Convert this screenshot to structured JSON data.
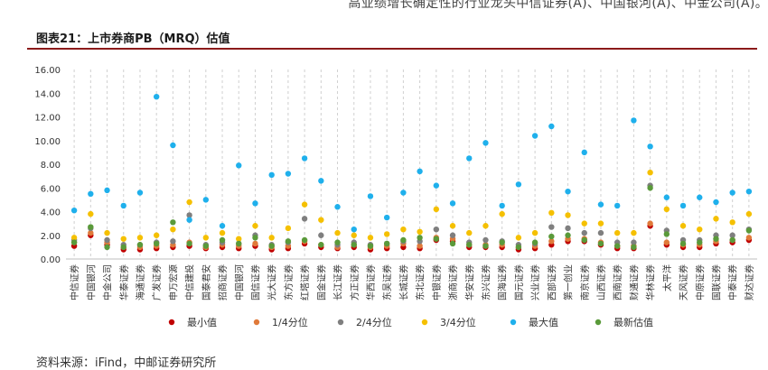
{
  "header": {
    "top_text": "高业绩增长确定性的行业龙头中信证券(A)、中国银河(A)、中金公司(A)。",
    "title": "图表21：上市券商PB（MRQ）估值",
    "source": "资料来源：iFind，中邮证券研究所"
  },
  "chart_data": {
    "type": "scatter",
    "ylim": [
      0,
      16
    ],
    "yticks": [
      "0.00",
      "2.00",
      "4.00",
      "6.00",
      "8.00",
      "10.00",
      "12.00",
      "14.00",
      "16.00"
    ],
    "grid": "vertical-dashed",
    "legend_position": "bottom",
    "categories": [
      "中信证券",
      "中国银河",
      "中金公司",
      "华泰证券",
      "海通证券",
      "广发证券",
      "申万宏源",
      "中信建投",
      "国泰君安",
      "招商证券",
      "中国银河",
      "国信证券",
      "光大证券",
      "东方证券",
      "红塔证券",
      "国金证券",
      "长江证券",
      "方正证券",
      "华西证券",
      "东吴证券",
      "长城证券",
      "东北证券",
      "中银证券",
      "浙商证券",
      "华安证券",
      "东兴证券",
      "国海证券",
      "国元证券",
      "兴业证券",
      "西部证券",
      "第一创业",
      "南京证券",
      "山西证券",
      "西南证券",
      "财通证券",
      "华林证券",
      "太平洋",
      "天风证券",
      "中原证券",
      "国联证券",
      "中泰证券",
      "财达证券"
    ],
    "series": [
      {
        "name": "最小值",
        "color": "#c00000",
        "values": [
          1.1,
          2.0,
          1.2,
          0.8,
          0.8,
          0.9,
          1.0,
          1.1,
          0.9,
          1.0,
          0.9,
          1.1,
          0.8,
          0.9,
          1.3,
          1.0,
          0.9,
          1.0,
          0.8,
          0.9,
          1.0,
          0.9,
          1.6,
          1.5,
          1.0,
          1.0,
          1.0,
          0.8,
          0.9,
          1.2,
          1.5,
          1.5,
          1.2,
          0.9,
          0.9,
          2.8,
          1.2,
          1.0,
          1.0,
          1.3,
          1.4,
          1.6
        ]
      },
      {
        "name": "1/4分位",
        "color": "#e07a3a",
        "values": [
          1.4,
          2.2,
          1.4,
          1.0,
          1.0,
          1.1,
          1.2,
          1.4,
          1.0,
          1.2,
          1.1,
          1.3,
          1.0,
          1.1,
          1.5,
          1.2,
          1.0,
          1.2,
          1.0,
          1.1,
          1.3,
          1.1,
          1.8,
          1.7,
          1.2,
          1.2,
          1.2,
          1.0,
          1.1,
          1.5,
          1.7,
          1.7,
          1.4,
          1.1,
          1.1,
          3.0,
          1.4,
          1.2,
          1.2,
          1.5,
          1.6,
          1.8
        ]
      },
      {
        "name": "2/4分位",
        "color": "#7f7f7f",
        "values": [
          1.6,
          2.6,
          1.6,
          1.2,
          1.2,
          1.4,
          1.5,
          3.7,
          1.2,
          1.4,
          1.3,
          2.0,
          1.2,
          1.4,
          3.4,
          2.0,
          1.2,
          1.4,
          1.2,
          1.3,
          1.5,
          1.5,
          2.5,
          2.0,
          1.4,
          1.6,
          1.5,
          1.2,
          1.3,
          2.7,
          2.6,
          2.2,
          2.2,
          1.4,
          1.4,
          6.2,
          2.4,
          1.6,
          1.6,
          2.0,
          2.0,
          2.5
        ]
      },
      {
        "name": "3/4分位",
        "color": "#f5c000",
        "values": [
          1.8,
          3.8,
          2.2,
          1.7,
          1.8,
          2.0,
          2.5,
          4.8,
          1.8,
          2.2,
          1.7,
          2.8,
          1.8,
          2.6,
          4.6,
          3.3,
          2.2,
          2.0,
          1.8,
          2.1,
          2.5,
          2.3,
          4.2,
          2.8,
          2.2,
          2.8,
          3.8,
          1.8,
          2.2,
          3.9,
          3.7,
          3.0,
          3.0,
          2.2,
          2.2,
          7.3,
          4.2,
          2.8,
          2.5,
          3.4,
          3.1,
          3.8
        ]
      },
      {
        "name": "最大值",
        "color": "#1fb0ec",
        "values": [
          4.1,
          5.5,
          5.8,
          4.5,
          5.6,
          13.7,
          9.6,
          3.3,
          5.0,
          2.8,
          7.9,
          4.7,
          7.1,
          7.2,
          8.5,
          6.6,
          4.4,
          2.5,
          5.3,
          3.5,
          5.6,
          7.4,
          6.2,
          4.7,
          8.5,
          9.8,
          4.5,
          6.3,
          10.4,
          11.2,
          5.7,
          9.0,
          4.6,
          4.5,
          11.7,
          9.5,
          5.2,
          4.5,
          5.2,
          4.8,
          5.6,
          5.7
        ]
      },
      {
        "name": "最新估值",
        "color": "#5a9a3a",
        "values": [
          1.4,
          2.7,
          1.0,
          1.0,
          1.2,
          1.3,
          3.1,
          1.3,
          1.1,
          1.6,
          1.3,
          1.8,
          1.1,
          1.5,
          1.6,
          1.2,
          1.4,
          1.2,
          1.1,
          1.3,
          1.6,
          1.8,
          1.7,
          1.3,
          1.2,
          1.1,
          1.4,
          1.0,
          1.4,
          1.9,
          2.0,
          1.6,
          1.3,
          1.1,
          1.0,
          6.0,
          2.1,
          1.3,
          1.4,
          1.7,
          1.6,
          2.4
        ]
      }
    ]
  }
}
